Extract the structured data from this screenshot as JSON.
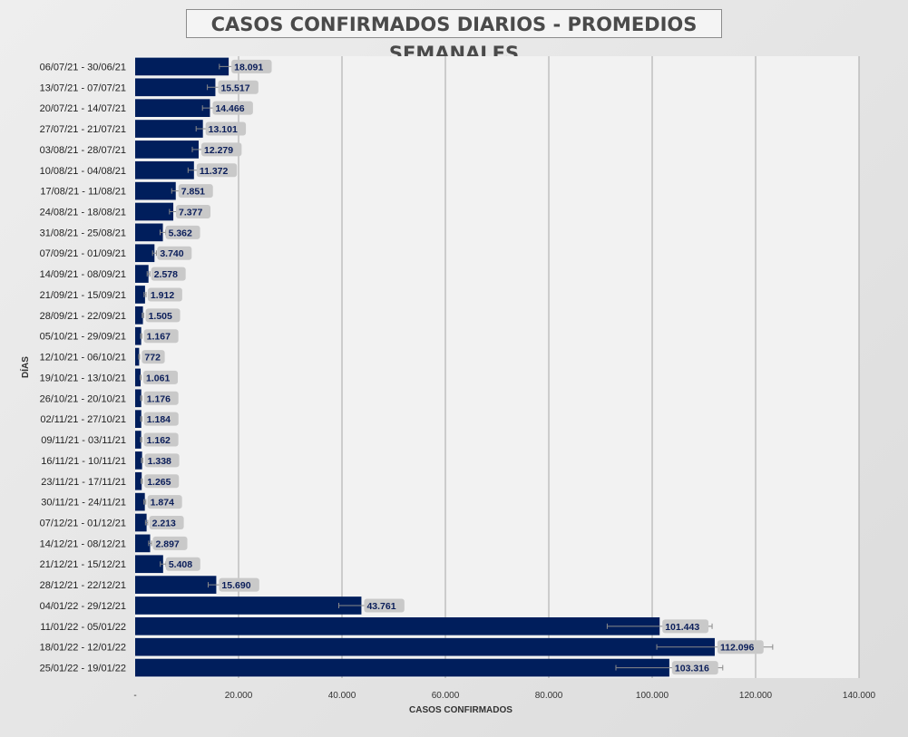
{
  "chart_data": {
    "type": "bar",
    "orientation": "horizontal",
    "title": "CASOS CONFIRMADOS DIARIOS - PROMEDIOS SEMANALES",
    "xlabel": "CASOS CONFIRMADOS",
    "ylabel": "DÍAS",
    "xlim": [
      0,
      140000
    ],
    "x_ticks": [
      0,
      20000,
      40000,
      60000,
      80000,
      100000,
      120000,
      140000
    ],
    "x_tick_labels": [
      "-",
      "20.000",
      "40.000",
      "60.000",
      "80.000",
      "100.000",
      "120.000",
      "140.000"
    ],
    "grid": true,
    "bar_color": "#001e5c",
    "error_bars": true,
    "categories": [
      "06/07/21 - 30/06/21",
      "13/07/21 - 07/07/21",
      "20/07/21 - 14/07/21",
      "27/07/21 - 21/07/21",
      "03/08/21 - 28/07/21",
      "10/08/21 - 04/08/21",
      "17/08/21 - 11/08/21",
      "24/08/21 - 18/08/21",
      "31/08/21 - 25/08/21",
      "07/09/21 - 01/09/21",
      "14/09/21 - 08/09/21",
      "21/09/21 - 15/09/21",
      "28/09/21 - 22/09/21",
      "05/10/21 - 29/09/21",
      "12/10/21 - 06/10/21",
      "19/10/21 - 13/10/21",
      "26/10/21 - 20/10/21",
      "02/11/21 - 27/10/21",
      "09/11/21 - 03/11/21",
      "16/11/21 - 10/11/21",
      "23/11/21 - 17/11/21",
      "30/11/21 - 24/11/21",
      "07/12/21 - 01/12/21",
      "14/12/21 - 08/12/21",
      "21/12/21 - 15/12/21",
      "28/12/21 - 22/12/21",
      "04/01/22 - 29/12/21",
      "11/01/22 - 05/01/22",
      "18/01/22 - 12/01/22",
      "25/01/22 - 19/01/22"
    ],
    "values": [
      18091,
      15517,
      14466,
      13101,
      12279,
      11372,
      7851,
      7377,
      5362,
      3740,
      2578,
      1912,
      1505,
      1167,
      772,
      1061,
      1176,
      1184,
      1162,
      1338,
      1265,
      1874,
      2213,
      2897,
      5408,
      15690,
      43761,
      101443,
      112096,
      103316
    ],
    "value_labels": [
      "18.091",
      "15.517",
      "14.466",
      "13.101",
      "12.279",
      "11.372",
      "7.851",
      "7.377",
      "5.362",
      "3.740",
      "2.578",
      "1.912",
      "1.505",
      "1.167",
      "772",
      "1.061",
      "1.176",
      "1.184",
      "1.162",
      "1.338",
      "1.265",
      "1.874",
      "2.213",
      "2.897",
      "5.408",
      "15.690",
      "43.761",
      "101.443",
      "112.096",
      "103.316"
    ]
  }
}
